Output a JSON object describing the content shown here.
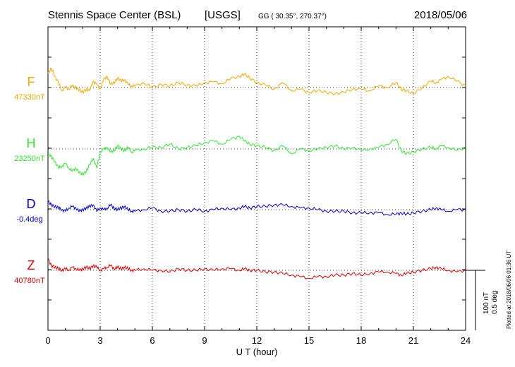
{
  "header": {
    "station": "Stennis Space Center (BSL)",
    "agency": "[USGS]",
    "coords": "GG ( 30.35°, 270.37°)",
    "date": "2018/05/06"
  },
  "footer": {
    "plotted": "Plotted at 2018/06/06 01:36 UT"
  },
  "scale": {
    "nt": "100 nT",
    "deg": "0.5 deg"
  },
  "chart_data": {
    "type": "line",
    "xlabel": "U T (hour)",
    "xlim": [
      0,
      24
    ],
    "xticks": [
      "0",
      "3",
      "6",
      "9",
      "12",
      "15",
      "18",
      "21",
      "24"
    ],
    "grid": true,
    "series": [
      {
        "name": "F",
        "baseline_label": "47330nT",
        "color": "#f5a800",
        "x": [
          0,
          0.2,
          0.4,
          0.6,
          0.8,
          1,
          1.2,
          1.4,
          1.6,
          1.8,
          2,
          2.2,
          2.4,
          2.6,
          2.8,
          3,
          3.2,
          3.4,
          3.6,
          3.8,
          4,
          4.2,
          4.4,
          4.6,
          4.8,
          5,
          5.5,
          6,
          6.5,
          7,
          7.5,
          8,
          8.5,
          9,
          9.5,
          10,
          10.5,
          11,
          11.3,
          11.6,
          12,
          12.5,
          13,
          13.5,
          14,
          14.5,
          15,
          15.5,
          16,
          16.5,
          17,
          17.5,
          18,
          18.5,
          19,
          19.5,
          20,
          20.3,
          20.6,
          21,
          21.5,
          22,
          22.3,
          22.6,
          23,
          23.5,
          24
        ],
        "values": [
          45,
          60,
          35,
          15,
          -10,
          2,
          -5,
          5,
          0,
          -8,
          -15,
          -5,
          -10,
          20,
          10,
          -5,
          25,
          35,
          10,
          15,
          30,
          20,
          25,
          10,
          5,
          5,
          15,
          0,
          10,
          5,
          15,
          8,
          5,
          15,
          18,
          12,
          28,
          35,
          42,
          30,
          15,
          8,
          -5,
          15,
          -10,
          -5,
          -15,
          -10,
          -15,
          -20,
          -15,
          -5,
          -5,
          -10,
          5,
          0,
          15,
          -5,
          -10,
          -20,
          0,
          20,
          15,
          25,
          35,
          20,
          5
        ]
      },
      {
        "name": "H",
        "baseline_label": "23250nT",
        "color": "#33e633",
        "x": [
          0,
          0.2,
          0.4,
          0.6,
          0.8,
          1,
          1.2,
          1.4,
          1.6,
          1.8,
          2,
          2.2,
          2.4,
          2.6,
          2.8,
          3,
          3.2,
          3.4,
          3.6,
          3.8,
          4,
          4.2,
          4.4,
          4.6,
          4.8,
          5,
          5.5,
          6,
          6.5,
          7,
          7.5,
          8,
          8.5,
          9,
          9.5,
          10,
          10.5,
          11,
          11.3,
          11.6,
          12,
          12.5,
          13,
          13.5,
          14,
          14.5,
          15,
          15.5,
          16,
          16.5,
          17,
          17.5,
          18,
          18.5,
          19,
          19.5,
          20,
          20.3,
          20.6,
          21,
          21.5,
          22,
          22.3,
          22.6,
          23,
          23.5,
          24
        ],
        "values": [
          -15,
          -25,
          -40,
          -60,
          -55,
          -45,
          -60,
          -70,
          -60,
          -75,
          -80,
          -70,
          -50,
          -30,
          -60,
          -10,
          0,
          5,
          -10,
          -5,
          10,
          0,
          -5,
          5,
          -10,
          -5,
          0,
          5,
          5,
          15,
          0,
          5,
          10,
          20,
          25,
          15,
          30,
          40,
          25,
          15,
          10,
          5,
          -5,
          10,
          -15,
          0,
          -5,
          0,
          5,
          10,
          0,
          5,
          -5,
          0,
          5,
          15,
          30,
          -5,
          -15,
          -10,
          0,
          5,
          0,
          10,
          5,
          -5,
          5
        ]
      },
      {
        "name": "D",
        "baseline_label": "-0.4deg",
        "color": "#0000cc",
        "x": [
          0,
          0.2,
          0.4,
          0.6,
          0.8,
          1,
          1.2,
          1.4,
          1.6,
          1.8,
          2,
          2.2,
          2.4,
          2.6,
          2.8,
          3,
          3.2,
          3.4,
          3.6,
          3.8,
          4,
          4.2,
          4.4,
          4.6,
          4.8,
          5,
          5.5,
          6,
          6.5,
          7,
          7.5,
          8,
          8.5,
          9,
          9.5,
          10,
          10.5,
          11,
          11.3,
          11.6,
          12,
          12.5,
          13,
          13.5,
          14,
          14.5,
          15,
          15.5,
          16,
          16.5,
          17,
          17.5,
          18,
          18.5,
          19,
          19.5,
          20,
          20.3,
          20.6,
          21,
          21.5,
          22,
          22.3,
          22.6,
          23,
          23.5,
          24
        ],
        "values": [
          25,
          15,
          10,
          5,
          0,
          -5,
          5,
          10,
          5,
          -5,
          0,
          5,
          10,
          15,
          -5,
          5,
          0,
          5,
          15,
          5,
          0,
          5,
          10,
          0,
          -5,
          -5,
          0,
          5,
          -5,
          -5,
          0,
          -5,
          0,
          -5,
          0,
          5,
          0,
          5,
          10,
          5,
          10,
          10,
          15,
          15,
          10,
          5,
          5,
          0,
          -5,
          -5,
          -5,
          -10,
          -10,
          -10,
          -10,
          -15,
          -15,
          -10,
          -15,
          -10,
          -5,
          0,
          5,
          0,
          -5,
          0,
          0
        ]
      },
      {
        "name": "Z",
        "baseline_label": "40780nT",
        "color": "#dd0000",
        "x": [
          0,
          0.2,
          0.4,
          0.6,
          0.8,
          1,
          1.2,
          1.4,
          1.6,
          1.8,
          2,
          2.2,
          2.4,
          2.6,
          2.8,
          3,
          3.2,
          3.4,
          3.6,
          3.8,
          4,
          4.2,
          4.4,
          4.6,
          4.8,
          5,
          5.5,
          6,
          6.5,
          7,
          7.5,
          8,
          8.5,
          9,
          9.5,
          10,
          10.5,
          11,
          11.3,
          11.6,
          12,
          12.5,
          13,
          13.5,
          14,
          14.5,
          15,
          15.5,
          16,
          16.5,
          17,
          17.5,
          18,
          18.5,
          19,
          19.5,
          20,
          20.3,
          20.6,
          21,
          21.5,
          22,
          22.3,
          22.6,
          23,
          23.5,
          24
        ],
        "values": [
          35,
          15,
          10,
          5,
          0,
          5,
          0,
          10,
          5,
          0,
          5,
          10,
          5,
          15,
          10,
          0,
          5,
          10,
          15,
          5,
          10,
          5,
          10,
          5,
          0,
          0,
          5,
          0,
          0,
          -5,
          5,
          0,
          0,
          5,
          0,
          5,
          5,
          0,
          5,
          0,
          0,
          -5,
          -5,
          -10,
          -15,
          -20,
          -25,
          -20,
          -20,
          -15,
          -15,
          -10,
          -15,
          -10,
          -5,
          -5,
          -10,
          -15,
          -10,
          -5,
          0,
          5,
          10,
          5,
          0,
          -5,
          0
        ]
      }
    ]
  }
}
